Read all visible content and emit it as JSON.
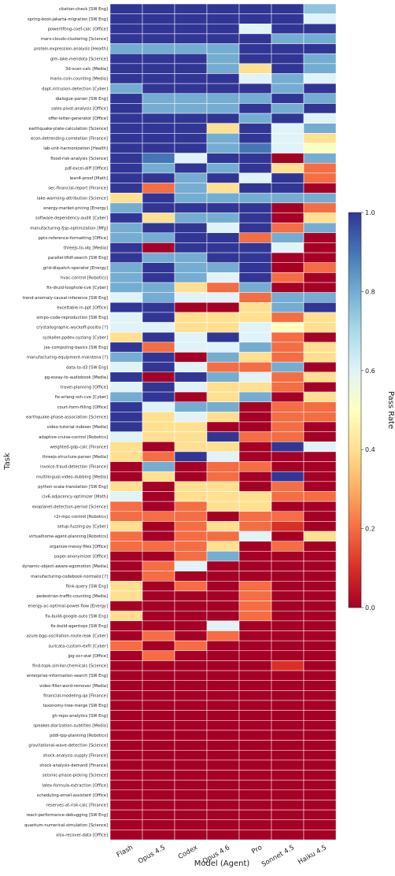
{
  "chart_data": {
    "type": "heatmap",
    "xlabel": "Model (Agent)",
    "ylabel": "Task",
    "colorbar_label": "Pass Rate",
    "colorbar_ticks": [
      "0.0",
      "0.2",
      "0.4",
      "0.6",
      "0.8",
      "1.0"
    ],
    "colorscale": "RdYlBu",
    "vmin": 0,
    "vmax": 1,
    "models": [
      "Flash",
      "Opus 4.5",
      "Codex",
      "Opus 4.6",
      "Pro",
      "Sonnet 4.5",
      "Haiku 4.5"
    ],
    "tasks": [
      "citation-check [SW Eng]",
      "spring-boot-jakarta-migration [SW Eng]",
      "powerlifting-coef-calc [Office]",
      "mars-clouds-clustering [Science]",
      "protein-expression-analysis [Health]",
      "glm-lake-mendota [Science]",
      "3d-scan-calc [Media]",
      "mario-coin-counting [Media]",
      "dapt-intrusion-detection [Cyber]",
      "dialogue-parser [SW Eng]",
      "sales-pivot-analysis [Office]",
      "offer-letter-generator [Office]",
      "earthquake-plate-calculation [Science]",
      "econ-detrending-correlation [Finance]",
      "lab-unit-harmonization [Health]",
      "flood-risk-analysis [Science]",
      "pdf-excel-diff [Office]",
      "lean4-proof [Math]",
      "sec-financial-report [Finance]",
      "lake-warming-attribution [Science]",
      "energy-market-pricing [Energy]",
      "software-dependency-audit [Cyber]",
      "manufacturing-fjsp-optimization [Mfg]",
      "pptx-reference-formatting [Office]",
      "threejs-to-obj [Media]",
      "parallel-tfidf-search [SW Eng]",
      "grid-dispatch-operator [Energy]",
      "hvac-control [Robotics]",
      "fix-druid-loophole-cve [Cyber]",
      "trend-anomaly-causal-inference [SW Eng]",
      "exceltable-in-ppt [Office]",
      "simpo-code-reproduction [SW Eng]",
      "crystallographic-wyckoff-positio [?]",
      "syzkaller-ppdev-syzlang [Cyber]",
      "jax-computing-basics [SW Eng]",
      "manufacturing-equipment-maintena [?]",
      "data-to-d3 [SW Eng]",
      "pg-essay-to-audiobook [Media]",
      "travel-planning [Office]",
      "fix-erlang-ssh-cve [Cyber]",
      "court-form-filling [Office]",
      "earthquake-phase-association [Science]",
      "video-tutorial-indexer [Media]",
      "adaptive-cruise-control [Robotics]",
      "weighted-gdp-calc [Finance]",
      "threejs-structure-parser [Media]",
      "invoice-fraud-detection [Finance]",
      "multilingual-video-dubbing [Media]",
      "python-scala-translation [SW Eng]",
      "civ6-adjacency-optimizer [Math]",
      "exoplanet-detection-period [Science]",
      "r2r-mpc-control [Robotics]",
      "setup-fuzzing-py [Cyber]",
      "virtualhome-agent-planning [Robotics]",
      "organize-messy-files [Office]",
      "paper-anonymizer [Office]",
      "dynamic-object-aware-egomotion [Media]",
      "manufacturing-codebook-normaliz [?]",
      "flink-query [SW Eng]",
      "pedestrian-traffic-counting [Media]",
      "energy-ac-optimal-power-flow [Energy]",
      "fix-build-google-auto [SW Eng]",
      "fix-build-agentops [SW Eng]",
      "azure-bgp-oscillation-route-leak [Cyber]",
      "suricata-custom-exfil [Cyber]",
      "jpg-ocr-stat [Office]",
      "find-topk-similar-chemicals [Science]",
      "enterprise-information-search [SW Eng]",
      "video-filler-word-remover [Media]",
      "financial-modeling-qa [Finance]",
      "taxonomy-tree-merge [SW Eng]",
      "gh-repo-analytics [SW Eng]",
      "speaker-diarization-subtitles [Media]",
      "pddl-tpp-planning [Robotics]",
      "gravitational-wave-detection [Science]",
      "shock-analysis-supply [Finance]",
      "shock-analysis-demand [Finance]",
      "seismic-phase-picking [Science]",
      "latex-formula-extraction [Office]",
      "scheduling-email-assistant [Office]",
      "reserves-at-risk-calc [Finance]",
      "react-performance-debugging [SW Eng]",
      "quantum-numerical-simulation [Science]",
      "xlsx-recover-data [Office]"
    ],
    "values": [
      [
        1.0,
        1.0,
        1.0,
        1.0,
        1.0,
        1.0,
        0.75
      ],
      [
        1.0,
        1.0,
        1.0,
        1.0,
        1.0,
        1.0,
        0.6
      ],
      [
        1.0,
        1.0,
        1.0,
        1.0,
        0.6,
        1.0,
        1.0
      ],
      [
        1.0,
        1.0,
        1.0,
        1.0,
        1.0,
        0.8,
        0.8
      ],
      [
        0.8,
        0.8,
        0.8,
        0.8,
        1.0,
        1.0,
        1.0
      ],
      [
        1.0,
        1.0,
        1.0,
        0.8,
        1.0,
        1.0,
        0.8
      ],
      [
        1.0,
        1.0,
        1.0,
        0.8,
        0.4,
        1.0,
        0.8
      ],
      [
        1.0,
        1.0,
        1.0,
        1.0,
        0.6,
        0.8,
        0.6
      ],
      [
        0.8,
        1.0,
        1.0,
        1.0,
        1.0,
        0.8,
        1.0
      ],
      [
        1.0,
        0.8,
        0.8,
        0.8,
        0.8,
        1.0,
        0.8
      ],
      [
        1.0,
        0.8,
        0.8,
        0.8,
        1.0,
        0.8,
        1.0
      ],
      [
        1.0,
        1.0,
        1.0,
        1.0,
        0.8,
        1.0,
        0.6
      ],
      [
        1.0,
        1.0,
        1.0,
        0.4,
        1.0,
        0.6,
        0.8
      ],
      [
        1.0,
        1.0,
        1.0,
        0.8,
        1.0,
        0.6,
        0.4
      ],
      [
        1.0,
        1.0,
        1.0,
        0.8,
        0.9,
        0.6,
        0.5
      ],
      [
        1.0,
        0.9,
        0.6,
        1.0,
        1.0,
        0.0,
        0.8
      ],
      [
        1.0,
        0.8,
        1.0,
        0.8,
        1.0,
        0.4,
        0.2
      ],
      [
        1.0,
        1.0,
        0.8,
        1.0,
        0.6,
        1.0,
        0.2
      ],
      [
        1.0,
        0.2,
        0.8,
        0.4,
        1.0,
        1.0,
        0.0
      ],
      [
        0.4,
        1.0,
        0.8,
        0.8,
        0.8,
        0.8,
        0.8
      ],
      [
        0.8,
        1.0,
        1.0,
        1.0,
        1.0,
        0.0,
        0.2
      ],
      [
        1.0,
        0.4,
        0.8,
        0.8,
        1.0,
        0.0,
        0.4
      ],
      [
        0.8,
        1.0,
        1.0,
        0.6,
        1.0,
        0.2,
        0.8
      ],
      [
        0.8,
        0.8,
        1.0,
        1.0,
        0.2,
        0.8,
        0.0
      ],
      [
        1.0,
        0.0,
        1.0,
        1.0,
        1.0,
        0.6,
        0.0
      ],
      [
        1.0,
        0.8,
        0.8,
        1.0,
        1.0,
        0.0,
        0.0
      ],
      [
        0.8,
        1.0,
        0.8,
        0.8,
        1.0,
        0.0,
        0.2
      ],
      [
        0.8,
        1.0,
        0.8,
        0.6,
        1.0,
        0.2,
        0.0
      ],
      [
        0.8,
        0.8,
        0.4,
        0.2,
        0.8,
        0.0,
        0.0
      ],
      [
        0.6,
        0.8,
        0.6,
        0.6,
        0.2,
        0.8,
        0.8
      ],
      [
        1.0,
        1.0,
        0.0,
        0.0,
        0.4,
        0.8,
        1.0
      ],
      [
        0.6,
        1.0,
        0.4,
        0.4,
        0.4,
        0.2,
        0.4
      ],
      [
        0.6,
        0.6,
        0.4,
        0.4,
        0.6,
        0.5,
        0.4
      ],
      [
        0.4,
        1.0,
        0.6,
        1.0,
        0.6,
        0.2,
        0.0
      ],
      [
        1.0,
        0.2,
        0.6,
        0.6,
        0.8,
        0.2,
        0.4
      ],
      [
        0.8,
        1.0,
        0.0,
        0.8,
        0.4,
        0.2,
        0.4
      ],
      [
        0.6,
        1.0,
        0.6,
        0.2,
        0.2,
        0.8,
        0.0
      ],
      [
        1.0,
        0.0,
        1.0,
        0.8,
        0.6,
        0.2,
        0.4
      ],
      [
        0.6,
        1.0,
        0.6,
        0.4,
        0.4,
        0.2,
        0.0
      ],
      [
        0.8,
        1.0,
        0.0,
        0.4,
        0.8,
        0.0,
        0.4
      ],
      [
        1.0,
        0.6,
        0.8,
        0.8,
        0.0,
        0.2,
        0.2
      ],
      [
        1.0,
        0.4,
        0.6,
        0.4,
        0.0,
        0.2,
        0.2
      ],
      [
        1.0,
        0.4,
        0.4,
        0.0,
        0.0,
        0.2,
        0.0
      ],
      [
        0.6,
        0.4,
        0.4,
        1.0,
        0.2,
        0.2,
        0.0
      ],
      [
        0.4,
        0.0,
        0.4,
        0.4,
        0.0,
        1.0,
        0.6
      ],
      [
        0.4,
        0.2,
        1.0,
        0.6,
        0.0,
        0.0,
        0.0
      ],
      [
        0.0,
        0.8,
        0.0,
        0.2,
        0.2,
        0.0,
        0.0
      ],
      [
        0.0,
        0.4,
        0.0,
        0.2,
        0.0,
        1.0,
        0.0
      ],
      [
        0.4,
        0.0,
        0.4,
        0.4,
        0.0,
        0.2,
        0.0
      ],
      [
        0.6,
        0.0,
        0.4,
        0.4,
        0.4,
        0.2,
        0.2
      ],
      [
        0.2,
        0.0,
        0.2,
        0.4,
        0.4,
        0.0,
        0.0
      ],
      [
        0.2,
        0.2,
        0.2,
        0.0,
        0.2,
        0.2,
        0.0
      ],
      [
        0.4,
        0.0,
        0.2,
        0.4,
        0.2,
        0.1,
        0.0
      ],
      [
        0.2,
        0.0,
        0.2,
        0.2,
        0.6,
        0.0,
        0.4
      ],
      [
        0.2,
        0.2,
        0.2,
        0.4,
        0.0,
        0.2,
        0.0
      ],
      [
        0.0,
        0.0,
        0.2,
        0.8,
        0.0,
        0.0,
        0.0
      ],
      [
        0.0,
        0.2,
        0.6,
        0.0,
        0.0,
        0.0,
        0.0
      ],
      [
        0.0,
        0.2,
        0.0,
        0.0,
        0.0,
        0.0,
        0.0
      ],
      [
        0.4,
        0.0,
        0.2,
        0.0,
        0.2,
        0.0,
        0.0
      ],
      [
        0.4,
        0.0,
        0.0,
        0.0,
        0.2,
        0.0,
        0.0
      ],
      [
        0.0,
        0.0,
        0.0,
        0.0,
        0.2,
        0.0,
        0.0
      ],
      [
        0.4,
        0.0,
        0.0,
        0.0,
        0.2,
        0.0,
        0.0
      ],
      [
        0.0,
        0.0,
        0.0,
        0.6,
        0.0,
        0.0,
        0.0
      ],
      [
        0.0,
        0.2,
        0.0,
        0.2,
        0.0,
        0.0,
        0.0
      ],
      [
        0.2,
        0.0,
        0.2,
        0.0,
        0.0,
        0.0,
        0.0
      ],
      [
        0.0,
        0.2,
        0.0,
        0.0,
        0.0,
        0.0,
        0.0
      ],
      [
        0.0,
        0.0,
        0.0,
        0.0,
        0.0,
        0.1,
        0.0
      ],
      [
        0.0,
        0.0,
        0.0,
        0.0,
        0.0,
        0.0,
        0.0
      ],
      [
        0.0,
        0.0,
        0.0,
        0.0,
        0.0,
        0.0,
        0.0
      ],
      [
        0.0,
        0.0,
        0.0,
        0.0,
        0.0,
        0.0,
        0.0
      ],
      [
        0.0,
        0.0,
        0.0,
        0.0,
        0.0,
        0.0,
        0.0
      ],
      [
        0.0,
        0.0,
        0.0,
        0.0,
        0.0,
        0.0,
        0.0
      ],
      [
        0.0,
        0.0,
        0.0,
        0.0,
        0.0,
        0.0,
        0.0
      ],
      [
        0.0,
        0.0,
        0.0,
        0.0,
        0.0,
        0.0,
        0.0
      ],
      [
        0.0,
        0.0,
        0.0,
        0.0,
        0.0,
        0.0,
        0.0
      ],
      [
        0.0,
        0.0,
        0.0,
        0.0,
        0.0,
        0.0,
        0.0
      ],
      [
        0.0,
        0.0,
        0.0,
        0.0,
        0.0,
        0.0,
        0.0
      ],
      [
        0.0,
        0.0,
        0.0,
        0.0,
        0.0,
        0.0,
        0.0
      ],
      [
        0.0,
        0.0,
        0.0,
        0.0,
        0.0,
        0.0,
        0.0
      ],
      [
        0.0,
        0.0,
        0.0,
        0.0,
        0.0,
        0.0,
        0.0
      ],
      [
        0.0,
        0.0,
        0.0,
        0.0,
        0.0,
        0.0,
        0.0
      ],
      [
        0.0,
        0.0,
        0.0,
        0.0,
        0.0,
        0.0,
        0.0
      ],
      [
        0.0,
        0.0,
        0.0,
        0.0,
        0.0,
        0.0,
        0.0
      ],
      [
        0.0,
        0.0,
        0.0,
        0.0,
        0.0,
        0.0,
        0.0
      ]
    ]
  }
}
